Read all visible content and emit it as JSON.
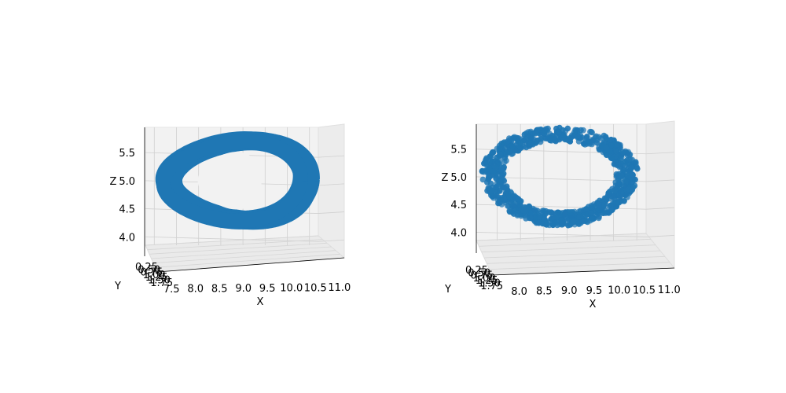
{
  "chart_data": [
    {
      "type": "line3d",
      "xlabel": "X",
      "ylabel": "Y",
      "zlabel": "Z",
      "xticks": [
        "7.5",
        "8.0",
        "8.5",
        "9.0",
        "9.5",
        "10.0",
        "10.5",
        "11.0"
      ],
      "yticks": [
        "0.25",
        "0.50",
        "0.75",
        "1.00",
        "1.25",
        "1.50",
        "1.75"
      ],
      "zticks": [
        "4.0",
        "4.5",
        "5.0",
        "5.5"
      ],
      "xlim": [
        7.3,
        11.2
      ],
      "zlim": [
        3.85,
        5.95
      ],
      "grid": true,
      "color": "#1f77b4",
      "series": {
        "x_center": 9.35,
        "x_amplitude": 1.55,
        "z_center": 5.0,
        "z_amplitude": 0.82,
        "loops": 14
      }
    },
    {
      "type": "scatter3d",
      "xlabel": "X",
      "ylabel": "Y",
      "zlabel": "Z",
      "xticks": [
        "8.0",
        "8.5",
        "9.0",
        "9.5",
        "10.0",
        "10.5",
        "11.0"
      ],
      "yticks": [
        "0.25",
        "0.50",
        "0.75",
        "1.00",
        "1.25",
        "1.50",
        "1.75"
      ],
      "zticks": [
        "4.0",
        "4.5",
        "5.0",
        "5.5"
      ],
      "xlim": [
        7.55,
        11.2
      ],
      "zlim": [
        3.85,
        5.95
      ],
      "grid": true,
      "color": "#1f77b4",
      "series": {
        "x_center": 9.35,
        "x_amplitude": 1.55,
        "z_center": 5.0,
        "z_amplitude": 0.82,
        "point_count": 900
      }
    }
  ]
}
